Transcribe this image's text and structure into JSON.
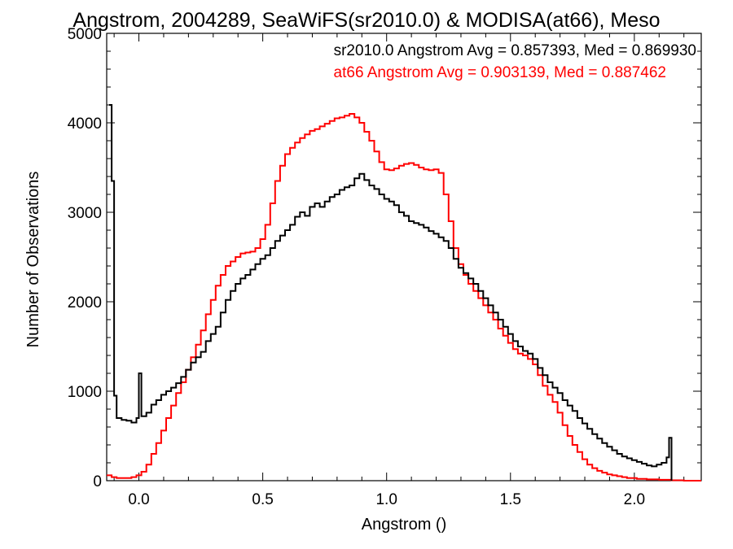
{
  "chart_data": {
    "type": "line",
    "step": true,
    "title": "Angstrom, 2004289, SeaWiFS(sr2010.0) & MODISA(at66), Meso",
    "xlabel": "Angstrom ()",
    "ylabel": "Number of Observations",
    "xlim": [
      -0.13,
      2.27
    ],
    "ylim": [
      0,
      5000
    ],
    "xticks": [
      "0.0",
      "0.5",
      "1.0",
      "1.5",
      "2.0"
    ],
    "yticks": [
      "0",
      "1000",
      "2000",
      "3000",
      "4000",
      "5000"
    ],
    "grid": false,
    "legend_position": "top-right",
    "series": [
      {
        "name": "sr2010.0",
        "color": "#000000",
        "annotation": "sr2010.0 Angstrom Avg = 0.857393, Med = 0.869930",
        "points": [
          [
            -0.12,
            4200
          ],
          [
            -0.11,
            3350
          ],
          [
            -0.1,
            950
          ],
          [
            -0.09,
            700
          ],
          [
            -0.07,
            680
          ],
          [
            -0.05,
            670
          ],
          [
            -0.03,
            650
          ],
          [
            -0.01,
            700
          ],
          [
            0.0,
            1200
          ],
          [
            0.01,
            720
          ],
          [
            0.03,
            760
          ],
          [
            0.05,
            850
          ],
          [
            0.07,
            900
          ],
          [
            0.09,
            960
          ],
          [
            0.11,
            1000
          ],
          [
            0.13,
            1040
          ],
          [
            0.15,
            1090
          ],
          [
            0.17,
            1160
          ],
          [
            0.19,
            1240
          ],
          [
            0.21,
            1320
          ],
          [
            0.23,
            1380
          ],
          [
            0.25,
            1440
          ],
          [
            0.27,
            1560
          ],
          [
            0.29,
            1640
          ],
          [
            0.31,
            1720
          ],
          [
            0.33,
            1880
          ],
          [
            0.35,
            2020
          ],
          [
            0.37,
            2120
          ],
          [
            0.39,
            2200
          ],
          [
            0.41,
            2260
          ],
          [
            0.43,
            2300
          ],
          [
            0.45,
            2360
          ],
          [
            0.47,
            2420
          ],
          [
            0.49,
            2480
          ],
          [
            0.51,
            2520
          ],
          [
            0.53,
            2600
          ],
          [
            0.55,
            2680
          ],
          [
            0.57,
            2740
          ],
          [
            0.59,
            2800
          ],
          [
            0.61,
            2860
          ],
          [
            0.63,
            2950
          ],
          [
            0.65,
            3000
          ],
          [
            0.67,
            2960
          ],
          [
            0.69,
            3060
          ],
          [
            0.71,
            3100
          ],
          [
            0.73,
            3060
          ],
          [
            0.75,
            3120
          ],
          [
            0.77,
            3170
          ],
          [
            0.79,
            3200
          ],
          [
            0.81,
            3250
          ],
          [
            0.83,
            3280
          ],
          [
            0.85,
            3300
          ],
          [
            0.87,
            3380
          ],
          [
            0.89,
            3430
          ],
          [
            0.91,
            3360
          ],
          [
            0.93,
            3300
          ],
          [
            0.95,
            3260
          ],
          [
            0.97,
            3200
          ],
          [
            0.99,
            3150
          ],
          [
            1.01,
            3120
          ],
          [
            1.03,
            3080
          ],
          [
            1.05,
            3000
          ],
          [
            1.07,
            2960
          ],
          [
            1.09,
            2900
          ],
          [
            1.11,
            2880
          ],
          [
            1.13,
            2860
          ],
          [
            1.15,
            2830
          ],
          [
            1.17,
            2790
          ],
          [
            1.19,
            2760
          ],
          [
            1.21,
            2720
          ],
          [
            1.23,
            2680
          ],
          [
            1.25,
            2600
          ],
          [
            1.27,
            2480
          ],
          [
            1.29,
            2380
          ],
          [
            1.31,
            2320
          ],
          [
            1.33,
            2260
          ],
          [
            1.35,
            2200
          ],
          [
            1.37,
            2120
          ],
          [
            1.39,
            2040
          ],
          [
            1.41,
            1960
          ],
          [
            1.43,
            1880
          ],
          [
            1.45,
            1800
          ],
          [
            1.47,
            1720
          ],
          [
            1.49,
            1640
          ],
          [
            1.51,
            1560
          ],
          [
            1.53,
            1500
          ],
          [
            1.55,
            1450
          ],
          [
            1.57,
            1420
          ],
          [
            1.59,
            1360
          ],
          [
            1.61,
            1260
          ],
          [
            1.63,
            1180
          ],
          [
            1.65,
            1100
          ],
          [
            1.67,
            1040
          ],
          [
            1.69,
            980
          ],
          [
            1.71,
            900
          ],
          [
            1.73,
            840
          ],
          [
            1.75,
            780
          ],
          [
            1.77,
            700
          ],
          [
            1.79,
            640
          ],
          [
            1.81,
            580
          ],
          [
            1.83,
            520
          ],
          [
            1.85,
            470
          ],
          [
            1.87,
            420
          ],
          [
            1.89,
            380
          ],
          [
            1.91,
            340
          ],
          [
            1.93,
            300
          ],
          [
            1.95,
            270
          ],
          [
            1.97,
            250
          ],
          [
            1.99,
            230
          ],
          [
            2.01,
            210
          ],
          [
            2.03,
            190
          ],
          [
            2.05,
            170
          ],
          [
            2.07,
            160
          ],
          [
            2.09,
            180
          ],
          [
            2.11,
            200
          ],
          [
            2.13,
            260
          ],
          [
            2.14,
            480
          ],
          [
            2.15,
            0
          ]
        ]
      },
      {
        "name": "at66",
        "color": "#ff0000",
        "annotation": "at66 Angstrom Avg = 0.903139, Med = 0.887462",
        "points": [
          [
            -0.13,
            60
          ],
          [
            -0.11,
            40
          ],
          [
            -0.09,
            30
          ],
          [
            -0.07,
            30
          ],
          [
            -0.05,
            30
          ],
          [
            -0.03,
            40
          ],
          [
            -0.01,
            60
          ],
          [
            0.01,
            100
          ],
          [
            0.03,
            180
          ],
          [
            0.05,
            300
          ],
          [
            0.07,
            420
          ],
          [
            0.09,
            560
          ],
          [
            0.11,
            700
          ],
          [
            0.13,
            840
          ],
          [
            0.15,
            980
          ],
          [
            0.17,
            1100
          ],
          [
            0.19,
            1240
          ],
          [
            0.21,
            1380
          ],
          [
            0.23,
            1520
          ],
          [
            0.25,
            1680
          ],
          [
            0.27,
            1860
          ],
          [
            0.29,
            2020
          ],
          [
            0.31,
            2180
          ],
          [
            0.33,
            2300
          ],
          [
            0.35,
            2400
          ],
          [
            0.37,
            2450
          ],
          [
            0.39,
            2500
          ],
          [
            0.41,
            2540
          ],
          [
            0.43,
            2550
          ],
          [
            0.45,
            2560
          ],
          [
            0.47,
            2600
          ],
          [
            0.49,
            2700
          ],
          [
            0.51,
            2860
          ],
          [
            0.53,
            3100
          ],
          [
            0.55,
            3350
          ],
          [
            0.57,
            3520
          ],
          [
            0.59,
            3650
          ],
          [
            0.61,
            3720
          ],
          [
            0.63,
            3780
          ],
          [
            0.65,
            3830
          ],
          [
            0.67,
            3870
          ],
          [
            0.69,
            3910
          ],
          [
            0.71,
            3930
          ],
          [
            0.73,
            3960
          ],
          [
            0.75,
            3990
          ],
          [
            0.77,
            4020
          ],
          [
            0.79,
            4050
          ],
          [
            0.81,
            4060
          ],
          [
            0.83,
            4080
          ],
          [
            0.85,
            4100
          ],
          [
            0.87,
            4060
          ],
          [
            0.89,
            4000
          ],
          [
            0.91,
            3900
          ],
          [
            0.93,
            3800
          ],
          [
            0.95,
            3680
          ],
          [
            0.97,
            3560
          ],
          [
            0.99,
            3480
          ],
          [
            1.01,
            3470
          ],
          [
            1.03,
            3490
          ],
          [
            1.05,
            3520
          ],
          [
            1.07,
            3540
          ],
          [
            1.09,
            3550
          ],
          [
            1.11,
            3530
          ],
          [
            1.13,
            3500
          ],
          [
            1.15,
            3480
          ],
          [
            1.17,
            3470
          ],
          [
            1.19,
            3480
          ],
          [
            1.21,
            3440
          ],
          [
            1.23,
            3200
          ],
          [
            1.25,
            2900
          ],
          [
            1.27,
            2600
          ],
          [
            1.29,
            2420
          ],
          [
            1.31,
            2300
          ],
          [
            1.33,
            2200
          ],
          [
            1.35,
            2120
          ],
          [
            1.37,
            2040
          ],
          [
            1.39,
            1960
          ],
          [
            1.41,
            1880
          ],
          [
            1.43,
            1800
          ],
          [
            1.45,
            1700
          ],
          [
            1.47,
            1620
          ],
          [
            1.49,
            1540
          ],
          [
            1.51,
            1470
          ],
          [
            1.53,
            1420
          ],
          [
            1.55,
            1400
          ],
          [
            1.57,
            1360
          ],
          [
            1.59,
            1300
          ],
          [
            1.61,
            1180
          ],
          [
            1.63,
            1060
          ],
          [
            1.65,
            960
          ],
          [
            1.67,
            880
          ],
          [
            1.69,
            760
          ],
          [
            1.71,
            620
          ],
          [
            1.73,
            500
          ],
          [
            1.75,
            400
          ],
          [
            1.77,
            320
          ],
          [
            1.79,
            240
          ],
          [
            1.81,
            180
          ],
          [
            1.83,
            140
          ],
          [
            1.85,
            110
          ],
          [
            1.87,
            90
          ],
          [
            1.89,
            70
          ],
          [
            1.91,
            60
          ],
          [
            1.93,
            50
          ],
          [
            1.95,
            40
          ],
          [
            1.97,
            30
          ],
          [
            2.01,
            20
          ],
          [
            2.05,
            15
          ],
          [
            2.1,
            10
          ],
          [
            2.15,
            5
          ],
          [
            2.2,
            0
          ],
          [
            2.27,
            0
          ]
        ]
      }
    ]
  }
}
